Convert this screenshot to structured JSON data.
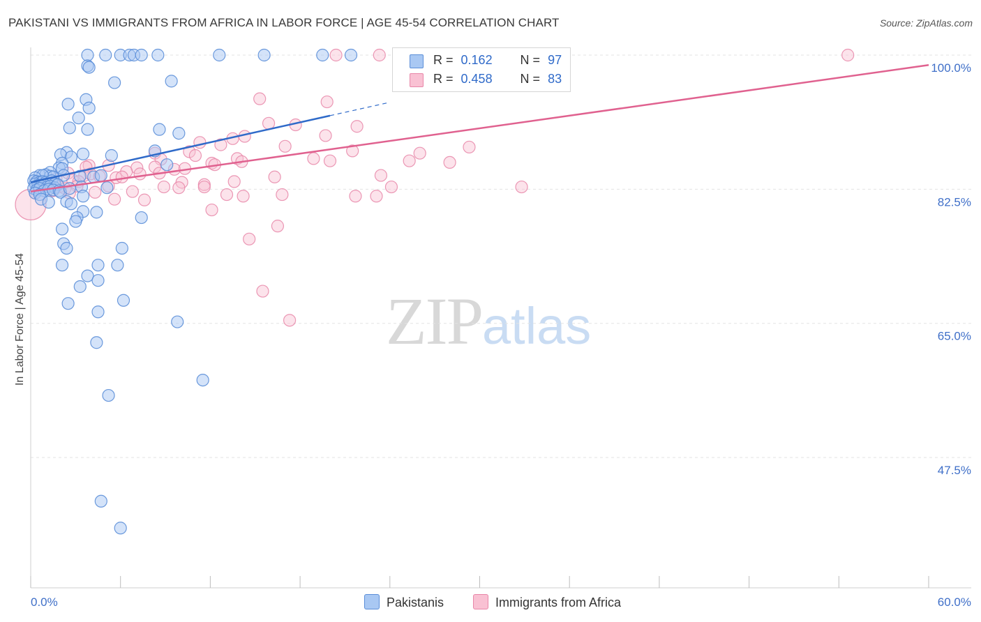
{
  "header": {
    "title": "PAKISTANI VS IMMIGRANTS FROM AFRICA IN LABOR FORCE | AGE 45-54 CORRELATION CHART",
    "source": "Source: ZipAtlas.com"
  },
  "watermark": {
    "zip": "ZIP",
    "atlas": "atlas"
  },
  "legend": {
    "r_label": "R =",
    "n_label": "N =",
    "series": [
      {
        "name": "Pakistanis",
        "r": "0.162",
        "n": "97"
      },
      {
        "name": "Immigrants from Africa",
        "r": "0.458",
        "n": "83"
      }
    ]
  },
  "colors": {
    "pakistanis_fill": "#a9c8f3",
    "pakistanis_stroke": "#5b8ed8",
    "pakistanis_line": "#2f6ac9",
    "africa_fill": "#f9c1d3",
    "africa_stroke": "#e886a8",
    "africa_line": "#e0618f",
    "tick_text": "#3f6fc8",
    "grid": "#e3e3e3"
  },
  "chart_data": {
    "type": "scatter",
    "title": "PAKISTANI VS IMMIGRANTS FROM AFRICA IN LABOR FORCE | AGE 45-54 CORRELATION CHART",
    "xlabel": "",
    "ylabel": "In Labor Force | Age 45-54",
    "xlim": [
      0,
      60
    ],
    "ylim": [
      30.5,
      100
    ],
    "x_tick_labels": [
      "0.0%",
      "60.0%"
    ],
    "y_ticks": [
      100.0,
      82.5,
      65.0,
      47.5
    ],
    "y_tick_labels": [
      "100.0%",
      "82.5%",
      "65.0%",
      "47.5%"
    ],
    "grid": true,
    "legend_position": "top-center",
    "series": [
      {
        "name": "Pakistanis",
        "trend": {
          "x": [
            0.0,
            20.0
          ],
          "y": [
            83.4,
            92.1
          ],
          "dashed_extension_to_x": 24.0
        },
        "points": [
          [
            3.8,
            100
          ],
          [
            5.0,
            100
          ],
          [
            6.0,
            100
          ],
          [
            6.6,
            100
          ],
          [
            6.9,
            100
          ],
          [
            7.4,
            100
          ],
          [
            8.5,
            100
          ],
          [
            12.6,
            100
          ],
          [
            15.6,
            100
          ],
          [
            19.5,
            100
          ],
          [
            21.4,
            100
          ],
          [
            3.8,
            98.6
          ],
          [
            3.9,
            98.4
          ],
          [
            5.6,
            96.4
          ],
          [
            9.4,
            96.6
          ],
          [
            3.7,
            94.2
          ],
          [
            2.5,
            93.6
          ],
          [
            3.9,
            93.1
          ],
          [
            3.2,
            91.8
          ],
          [
            2.6,
            90.5
          ],
          [
            3.8,
            90.3
          ],
          [
            8.6,
            90.3
          ],
          [
            9.9,
            89.8
          ],
          [
            2.4,
            87.3
          ],
          [
            3.5,
            87.1
          ],
          [
            2.0,
            87.0
          ],
          [
            5.4,
            86.9
          ],
          [
            8.3,
            87.5
          ],
          [
            2.7,
            86.7
          ],
          [
            2.1,
            85.9
          ],
          [
            9.1,
            85.7
          ],
          [
            1.9,
            85.3
          ],
          [
            2.1,
            85.2
          ],
          [
            1.3,
            84.7
          ],
          [
            0.6,
            84.3
          ],
          [
            1.0,
            84.4
          ],
          [
            1.3,
            84.2
          ],
          [
            2.2,
            84.3
          ],
          [
            3.3,
            84.2
          ],
          [
            4.2,
            84.1
          ],
          [
            4.7,
            84.3
          ],
          [
            1.5,
            84.1
          ],
          [
            0.8,
            84.3
          ],
          [
            0.3,
            84.0
          ],
          [
            0.2,
            83.6
          ],
          [
            0.4,
            83.5
          ],
          [
            0.6,
            83.4
          ],
          [
            0.8,
            83.5
          ],
          [
            1.0,
            83.4
          ],
          [
            1.2,
            83.3
          ],
          [
            1.4,
            83.6
          ],
          [
            1.6,
            83.2
          ],
          [
            0.3,
            83.2
          ],
          [
            0.5,
            83.0
          ],
          [
            0.7,
            82.9
          ],
          [
            0.9,
            83.1
          ],
          [
            1.1,
            82.8
          ],
          [
            1.3,
            82.9
          ],
          [
            1.6,
            82.7
          ],
          [
            1.8,
            83.1
          ],
          [
            0.2,
            82.6
          ],
          [
            0.4,
            82.4
          ],
          [
            0.6,
            82.6
          ],
          [
            0.9,
            82.3
          ],
          [
            1.2,
            82.5
          ],
          [
            1.5,
            82.4
          ],
          [
            1.9,
            82.3
          ],
          [
            2.0,
            82.1
          ],
          [
            0.3,
            82.0
          ],
          [
            0.6,
            81.8
          ],
          [
            2.6,
            82.6
          ],
          [
            3.4,
            82.8
          ],
          [
            5.1,
            82.7
          ],
          [
            0.7,
            81.2
          ],
          [
            1.2,
            80.8
          ],
          [
            2.4,
            80.9
          ],
          [
            3.5,
            81.6
          ],
          [
            2.7,
            80.6
          ],
          [
            3.5,
            79.6
          ],
          [
            3.1,
            78.8
          ],
          [
            4.4,
            79.5
          ],
          [
            3.0,
            78.3
          ],
          [
            7.4,
            78.8
          ],
          [
            2.1,
            77.3
          ],
          [
            2.2,
            75.4
          ],
          [
            2.4,
            74.8
          ],
          [
            6.1,
            74.8
          ],
          [
            2.1,
            72.6
          ],
          [
            4.5,
            72.6
          ],
          [
            5.8,
            72.6
          ],
          [
            3.8,
            71.2
          ],
          [
            4.5,
            70.6
          ],
          [
            3.3,
            69.8
          ],
          [
            6.2,
            68.0
          ],
          [
            2.5,
            67.6
          ],
          [
            4.5,
            66.5
          ],
          [
            9.8,
            65.2
          ],
          [
            4.4,
            62.5
          ],
          [
            11.5,
            57.6
          ],
          [
            5.2,
            55.6
          ],
          [
            4.7,
            41.8
          ],
          [
            6.0,
            38.3
          ]
        ]
      },
      {
        "name": "Immigrants from Africa",
        "trend": {
          "x": [
            0.0,
            60.0
          ],
          "y": [
            82.2,
            98.7
          ]
        },
        "points": [
          [
            20.4,
            100
          ],
          [
            23.3,
            100
          ],
          [
            25.8,
            100
          ],
          [
            54.6,
            100
          ],
          [
            15.3,
            94.3
          ],
          [
            19.8,
            93.9
          ],
          [
            15.9,
            91.1
          ],
          [
            17.7,
            90.9
          ],
          [
            21.8,
            90.7
          ],
          [
            14.3,
            89.4
          ],
          [
            13.5,
            89.1
          ],
          [
            19.7,
            89.5
          ],
          [
            11.3,
            88.6
          ],
          [
            12.7,
            88.3
          ],
          [
            17.0,
            88.1
          ],
          [
            26.0,
            87.2
          ],
          [
            21.5,
            87.5
          ],
          [
            29.3,
            88.0
          ],
          [
            8.3,
            87.2
          ],
          [
            10.6,
            87.4
          ],
          [
            11.0,
            86.9
          ],
          [
            13.8,
            86.5
          ],
          [
            18.9,
            86.5
          ],
          [
            20.0,
            86.2
          ],
          [
            8.7,
            86.4
          ],
          [
            12.1,
            85.9
          ],
          [
            14.1,
            86.1
          ],
          [
            25.3,
            86.2
          ],
          [
            28.0,
            86.0
          ],
          [
            3.9,
            85.6
          ],
          [
            3.7,
            85.4
          ],
          [
            5.2,
            85.6
          ],
          [
            7.1,
            85.3
          ],
          [
            8.3,
            85.4
          ],
          [
            9.6,
            85.1
          ],
          [
            10.3,
            85.2
          ],
          [
            12.3,
            85.7
          ],
          [
            6.4,
            84.8
          ],
          [
            7.3,
            84.5
          ],
          [
            8.6,
            84.6
          ],
          [
            2.5,
            84.6
          ],
          [
            3.6,
            84.3
          ],
          [
            4.0,
            84.5
          ],
          [
            4.6,
            84.2
          ],
          [
            5.7,
            84.0
          ],
          [
            6.1,
            84.1
          ],
          [
            1.7,
            83.9
          ],
          [
            2.8,
            83.7
          ],
          [
            3.2,
            83.5
          ],
          [
            10.1,
            83.4
          ],
          [
            11.6,
            83.1
          ],
          [
            13.6,
            83.5
          ],
          [
            16.3,
            84.1
          ],
          [
            23.4,
            84.3
          ],
          [
            1.2,
            83.0
          ],
          [
            1.9,
            82.8
          ],
          [
            2.3,
            82.6
          ],
          [
            3.1,
            82.9
          ],
          [
            5.2,
            82.9
          ],
          [
            8.9,
            82.8
          ],
          [
            9.9,
            82.7
          ],
          [
            11.6,
            82.8
          ],
          [
            24.1,
            82.8
          ],
          [
            32.8,
            82.8
          ],
          [
            0.3,
            82.0
          ],
          [
            1.5,
            82.3
          ],
          [
            2.6,
            82.0
          ],
          [
            4.3,
            82.1
          ],
          [
            6.8,
            82.2
          ],
          [
            13.1,
            81.8
          ],
          [
            14.2,
            81.6
          ],
          [
            16.8,
            81.8
          ],
          [
            21.7,
            81.6
          ],
          [
            23.1,
            81.6
          ],
          [
            5.6,
            81.2
          ],
          [
            7.6,
            81.1
          ],
          [
            12.1,
            79.8
          ],
          [
            16.5,
            77.7
          ],
          [
            14.6,
            76.0
          ],
          [
            15.5,
            69.2
          ],
          [
            17.3,
            65.4
          ],
          [
            0.0,
            80.5
          ]
        ]
      }
    ]
  }
}
